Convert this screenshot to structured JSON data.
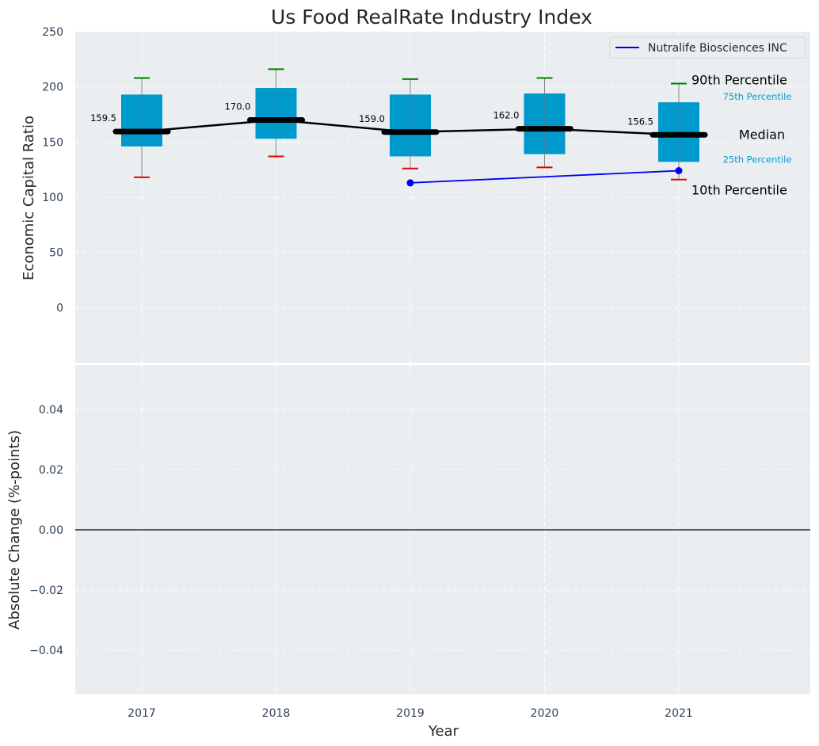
{
  "chart_data": [
    {
      "type": "box",
      "title": "Us Food RealRate Industry Index",
      "xlabel": "",
      "ylabel": "Economic Capital Ratio",
      "ylim": [
        -50,
        250
      ],
      "yticks": [
        "250",
        "200",
        "150",
        "100",
        "50",
        "0"
      ],
      "ytick_values": [
        250,
        200,
        150,
        100,
        50,
        0
      ],
      "categories": [
        "2017",
        "2018",
        "2019",
        "2020",
        "2021"
      ],
      "grid": true,
      "legend_position": "top-right",
      "box_color": "#0099cc",
      "p10": [
        118,
        137,
        126,
        127,
        116
      ],
      "p25": [
        146,
        153,
        137,
        139,
        132
      ],
      "median": [
        159.5,
        170.0,
        159.0,
        162.0,
        156.5
      ],
      "median_labels": [
        "159.5",
        "170.0",
        "159.0",
        "162.0",
        "156.5"
      ],
      "p75": [
        193,
        199,
        193,
        194,
        186
      ],
      "p90": [
        208,
        216,
        207,
        208,
        203
      ],
      "company_series": {
        "name": "Nutralife Biosciences INC",
        "color": "#0000ee",
        "x": [
          "2019",
          "2021"
        ],
        "values": [
          113,
          124
        ]
      },
      "annotations": {
        "p90": "90th Percentile",
        "p75": "75th Percentile",
        "median": "Median",
        "p25": "25th Percentile",
        "p10": "10th Percentile"
      }
    },
    {
      "type": "line",
      "xlabel": "Year",
      "ylabel": "Absolute Change (%-points)",
      "ylim": [
        -0.055,
        0.055
      ],
      "yticks": [
        "0.04",
        "0.02",
        "0.00",
        "−0.02",
        "−0.04"
      ],
      "ytick_values": [
        0.04,
        0.02,
        0.0,
        -0.02,
        -0.04
      ],
      "categories": [
        "2017",
        "2018",
        "2019",
        "2020",
        "2021"
      ],
      "grid": true,
      "reference_line": 0
    }
  ]
}
